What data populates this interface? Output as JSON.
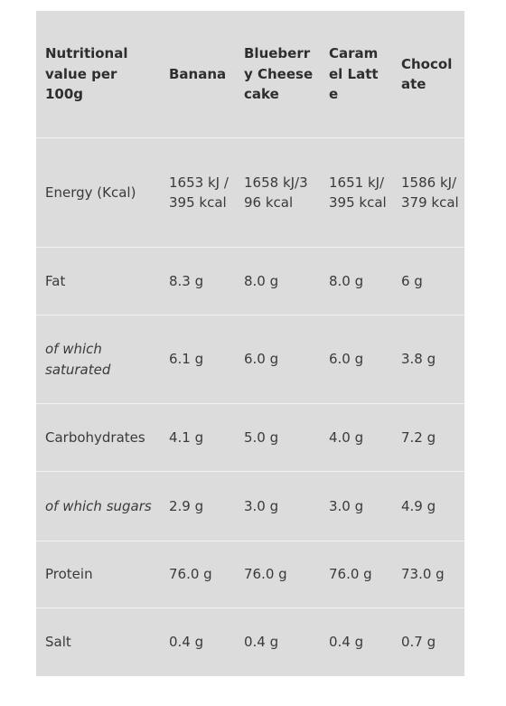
{
  "header": {
    "col0": "Nutritional value per 100g",
    "col1": "Banana",
    "col2": "Blueberry Cheesecake",
    "col3": "Caramel Latte",
    "col4": "Chocolate"
  },
  "rows": [
    {
      "label": "Energy (Kcal)",
      "banana": "1653 kJ / 395 kcal",
      "blueberry": "1658 kJ/396 kcal",
      "caramel": "1651 kJ/395 kcal",
      "chocolate": "1586 kJ/379 kcal"
    },
    {
      "label": "Fat",
      "banana": "8.3 g",
      "blueberry": "8.0 g",
      "caramel": "8.0 g",
      "chocolate": "6 g"
    },
    {
      "label": "of which saturated",
      "banana": "6.1 g",
      "blueberry": "6.0 g",
      "caramel": "6.0 g",
      "chocolate": "3.8 g"
    },
    {
      "label": "Carbohydrates",
      "banana": "4.1 g",
      "blueberry": "5.0 g",
      "caramel": "4.0 g",
      "chocolate": "7.2 g"
    },
    {
      "label": "of which sugars",
      "banana": "2.9 g",
      "blueberry": "3.0 g",
      "caramel": "3.0 g",
      "chocolate": "4.9 g"
    },
    {
      "label": "Protein",
      "banana": "76.0 g",
      "blueberry": "76.0 g",
      "caramel": "76.0 g",
      "chocolate": "73.0 g"
    },
    {
      "label": "Salt",
      "banana": "0.4 g",
      "blueberry": "0.4 g",
      "caramel": "0.4 g",
      "chocolate": "0.7 g"
    }
  ]
}
